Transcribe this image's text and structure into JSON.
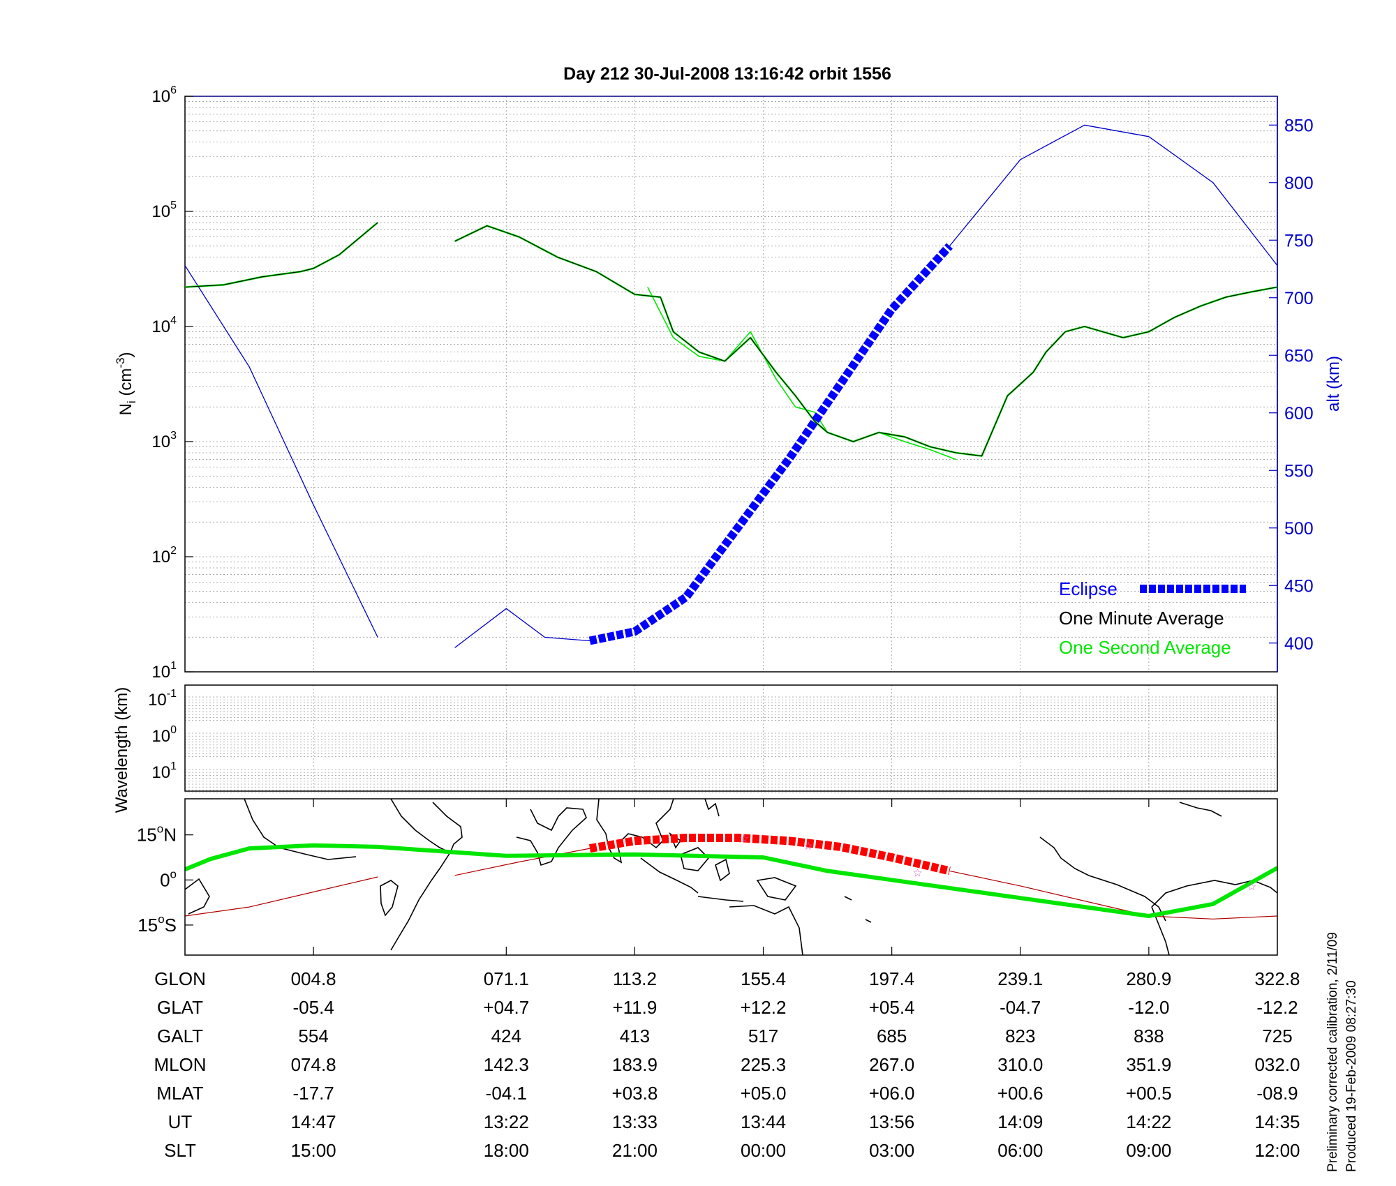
{
  "title": "Day 212  30-Jul-2008 13:16:42   orbit 1556",
  "colors": {
    "axis": "#000000",
    "alt": "#0000cc",
    "eclipse": "#0000ff",
    "minute": "#000000",
    "second": "#00e600",
    "grid": "#9a9a9a",
    "track_green": "#00e600",
    "track_red": "#ff0000",
    "track_thin": "#b00000",
    "star": "#cc66cc"
  },
  "chart_data": [
    {
      "type": "line",
      "title": "Day 212  30-Jul-2008 13:16:42   orbit 1556",
      "ylabel_base": "N",
      "ylabel_sub": "i",
      "ylabel_unit": "(cm",
      "ylabel_unit_exp": "-3",
      "ylabel_unit_close": ")",
      "yscale": "log",
      "ylim": [
        10,
        1000000
      ],
      "ytick_base": "10",
      "ytick_exponents": [
        "1",
        "2",
        "3",
        "4",
        "5",
        "6"
      ],
      "xlim": [
        0,
        8.5
      ],
      "x_gridlines": [
        1,
        2.5,
        3.5,
        4.5,
        5.5,
        6.5,
        7.5
      ],
      "y2label": "alt (km)",
      "y2lim": [
        375,
        875
      ],
      "y2ticks": [
        "400",
        "450",
        "500",
        "550",
        "600",
        "650",
        "700",
        "750",
        "800",
        "850"
      ],
      "legend_position": "bottom-right",
      "series": [
        {
          "name": "Eclipse",
          "style": "thick-dashed",
          "x": [
            3.15,
            3.5,
            3.9,
            4.3,
            4.7,
            5.1,
            5.5,
            5.95
          ],
          "y": [
            402,
            410,
            440,
            500,
            560,
            625,
            690,
            745
          ]
        },
        {
          "name": "One Minute Average",
          "style": "thin",
          "segments": [
            {
              "x": [
                0,
                0.3,
                0.6,
                0.9,
                1.0,
                1.2,
                1.5
              ],
              "y": [
                22000,
                23000,
                27000,
                30000,
                32000,
                42000,
                80000
              ]
            },
            {
              "x": [
                2.1,
                2.35,
                2.6,
                2.9,
                3.2,
                3.5,
                3.7,
                3.8,
                4.0,
                4.2,
                4.4,
                4.6,
                4.75,
                4.9,
                5.0,
                5.2,
                5.4,
                5.6,
                5.8,
                6.0,
                6.2,
                6.4,
                6.6,
                6.7,
                6.85,
                7.0,
                7.3,
                7.5,
                7.7,
                7.9,
                8.1,
                8.3,
                8.5
              ],
              "y": [
                55000,
                75000,
                60000,
                40000,
                30000,
                19000,
                18000,
                9000,
                6000,
                5000,
                8000,
                4000,
                2500,
                1500,
                1200,
                1000,
                1200,
                1100,
                900,
                800,
                750,
                2500,
                4000,
                6000,
                9000,
                10000,
                8000,
                9000,
                12000,
                15000,
                18000,
                20000,
                22000
              ]
            }
          ]
        },
        {
          "name": "One Second Average",
          "style": "thin",
          "x": [
            3.6,
            3.8,
            4.0,
            4.2,
            4.4,
            4.6,
            4.75,
            4.9,
            5.0,
            5.2,
            5.4,
            5.6,
            5.8,
            6.0
          ],
          "y": [
            22000,
            8000,
            5500,
            5000,
            9000,
            3500,
            2000,
            1800,
            1200,
            1000,
            1200,
            1000,
            850,
            700
          ]
        },
        {
          "name": "alt",
          "style": "thin",
          "segments": [
            {
              "x": [
                0,
                0.5,
                1.0,
                1.5
              ],
              "y": [
                728,
                640,
                520,
                405
              ]
            },
            {
              "x": [
                2.1,
                2.5,
                2.8,
                3.15
              ],
              "y": [
                396,
                430,
                405,
                402
              ]
            },
            {
              "x": [
                5.95,
                6.5,
                7.0,
                7.5,
                8.0,
                8.5
              ],
              "y": [
                745,
                820,
                850,
                840,
                800,
                728
              ]
            }
          ]
        }
      ],
      "legend": [
        "Eclipse",
        "One Minute Average",
        "One Second Average"
      ]
    },
    {
      "type": "heatmap",
      "ylabel": "Wavelength (km)",
      "ytick_base": "10",
      "ytick_exponents": [
        "-1",
        "0",
        "1"
      ]
    },
    {
      "type": "line",
      "map": true,
      "xlim": [
        0,
        8.5
      ],
      "ylim": [
        -25,
        27
      ],
      "ytick_labels": [
        {
          "value": 15,
          "num": "15",
          "deg": "o",
          "hem": "N"
        },
        {
          "value": 0,
          "num": "0",
          "deg": "o",
          "hem": ""
        },
        {
          "value": -15,
          "num": "15",
          "deg": "o",
          "hem": "S"
        }
      ],
      "series": [
        {
          "name": "magnetic equator",
          "style": "thick",
          "x": [
            0,
            0.2,
            0.5,
            1.0,
            1.5,
            2.5,
            3.5,
            4.5,
            5.0,
            5.5,
            6.5,
            7.5,
            8.0,
            8.5
          ],
          "y": [
            3.5,
            7,
            10.5,
            11.5,
            11,
            8,
            8.5,
            7.5,
            3,
            0,
            -6,
            -12,
            -8,
            4
          ]
        },
        {
          "name": "satellite track eclipse",
          "style": "thick-dashed",
          "x": [
            3.15,
            3.5,
            3.9,
            4.3,
            4.7,
            5.1,
            5.5,
            5.95
          ],
          "y": [
            10.5,
            13,
            14,
            14,
            13,
            11,
            7.5,
            3
          ]
        },
        {
          "name": "satellite track",
          "style": "thin",
          "segments": [
            {
              "x": [
                0,
                0.5,
                1.0,
                1.5
              ],
              "y": [
                -12,
                -9,
                -4,
                1
              ]
            },
            {
              "x": [
                2.1,
                2.6,
                3.15
              ],
              "y": [
                1.5,
                6,
                10.5
              ]
            },
            {
              "x": [
                5.95,
                6.5,
                7.0,
                7.5,
                8.0,
                8.5
              ],
              "y": [
                3,
                -2,
                -7,
                -12,
                -13,
                -12
              ]
            }
          ]
        }
      ],
      "markers": [
        {
          "x": 4.35,
          "y": 14
        },
        {
          "x": 4.85,
          "y": 11.5
        },
        {
          "x": 5.7,
          "y": 2.5
        },
        {
          "x": 8.3,
          "y": -2
        }
      ]
    }
  ],
  "table": {
    "row_labels": [
      "GLON",
      "GLAT",
      "GALT",
      "MLON",
      "MLAT",
      "UT",
      "SLT"
    ],
    "x": [
      1,
      2.5,
      3.5,
      4.5,
      5.5,
      6.5,
      7.5,
      8.5
    ],
    "rows": [
      [
        "004.8",
        "071.1",
        "113.2",
        "155.4",
        "197.4",
        "239.1",
        "280.9",
        "322.8"
      ],
      [
        "-05.4",
        "+04.7",
        "+11.9",
        "+12.2",
        "+05.4",
        "-04.7",
        "-12.0",
        "-12.2"
      ],
      [
        "554",
        "424",
        "413",
        "517",
        "685",
        "823",
        "838",
        "725"
      ],
      [
        "074.8",
        "142.3",
        "183.9",
        "225.3",
        "267.0",
        "310.0",
        "351.9",
        "032.0"
      ],
      [
        "-17.7",
        "-04.1",
        "+03.8",
        "+05.0",
        "+06.0",
        "+00.6",
        "+00.5",
        "-08.9"
      ],
      [
        "14:47",
        "13:22",
        "13:33",
        "13:44",
        "13:56",
        "14:09",
        "14:22",
        "14:35"
      ],
      [
        "15:00",
        "18:00",
        "21:00",
        "00:00",
        "03:00",
        "06:00",
        "09:00",
        "12:00"
      ]
    ]
  },
  "footer": {
    "line1": "Preliminary corrected calibration, 2/11/09",
    "line2": "Produced 19-Feb-2009 08:27:30"
  }
}
